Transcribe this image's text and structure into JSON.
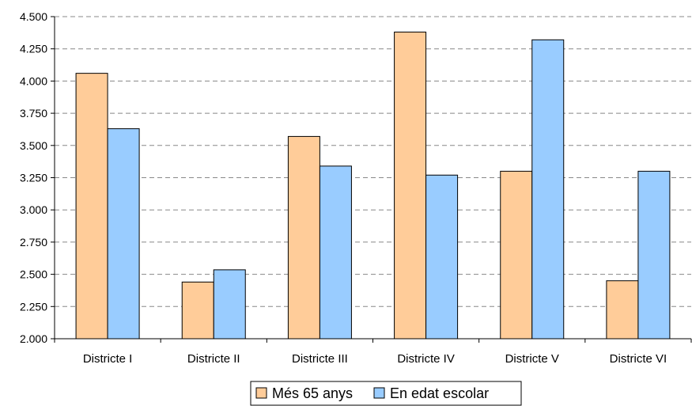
{
  "chart_data": {
    "type": "bar",
    "categories": [
      "Districte I",
      "Districte II",
      "Districte III",
      "Districte IV",
      "Districte V",
      "Districte VI"
    ],
    "series": [
      {
        "name": "Més 65 anys",
        "values": [
          4060,
          2440,
          3570,
          4380,
          3300,
          2450
        ],
        "color": "#FFCC99"
      },
      {
        "name": "En edat escolar",
        "values": [
          3630,
          2535,
          3340,
          3270,
          4320,
          3300
        ],
        "color": "#99CCFF"
      }
    ],
    "ylim": [
      2000,
      4500
    ],
    "yticks": [
      "2.000",
      "2.250",
      "2.500",
      "2.750",
      "3.000",
      "3.250",
      "3.500",
      "3.750",
      "4.000",
      "4.250",
      "4.500"
    ],
    "ytick_values": [
      2000,
      2250,
      2500,
      2750,
      3000,
      3250,
      3500,
      3750,
      4000,
      4250,
      4500
    ],
    "grid": true,
    "legend_position": "bottom",
    "xlabel": "",
    "ylabel": "",
    "title": ""
  }
}
